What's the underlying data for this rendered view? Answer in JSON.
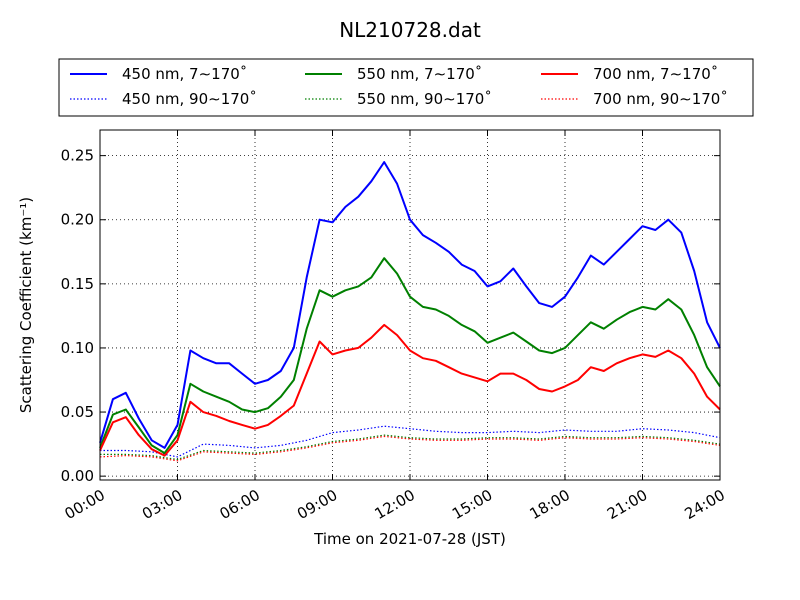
{
  "chart_data": {
    "type": "line",
    "title": "NL210728.dat",
    "xlabel": "Time on 2021-07-28 (JST)",
    "ylabel": "Scattering Coefficient (km⁻¹)",
    "xlim": [
      0,
      24
    ],
    "ylim": [
      -0.003,
      0.27
    ],
    "x_ticks": [
      "00:00",
      "03:00",
      "06:00",
      "09:00",
      "12:00",
      "15:00",
      "18:00",
      "21:00",
      "24:00"
    ],
    "y_ticks": [
      "0.00",
      "0.05",
      "0.10",
      "0.15",
      "0.20",
      "0.25"
    ],
    "grid": true,
    "legend_position": "top",
    "series": [
      {
        "name": "450 nm, 7∼170˚",
        "color": "#0000ff",
        "style": "solid",
        "x": [
          0,
          0.5,
          1,
          1.5,
          2,
          2.5,
          3,
          3.5,
          4,
          4.5,
          5,
          5.5,
          6,
          6.5,
          7,
          7.5,
          8,
          8.5,
          9,
          9.5,
          10,
          10.5,
          11,
          11.5,
          12,
          12.5,
          13,
          13.5,
          14,
          14.5,
          15,
          15.5,
          16,
          16.5,
          17,
          17.5,
          18,
          18.5,
          19,
          19.5,
          20,
          20.5,
          21,
          21.5,
          22,
          22.5,
          23,
          23.5,
          24
        ],
        "y": [
          0.026,
          0.06,
          0.065,
          0.045,
          0.028,
          0.022,
          0.04,
          0.098,
          0.092,
          0.088,
          0.088,
          0.08,
          0.072,
          0.075,
          0.082,
          0.1,
          0.155,
          0.2,
          0.198,
          0.21,
          0.218,
          0.23,
          0.245,
          0.228,
          0.2,
          0.188,
          0.182,
          0.175,
          0.165,
          0.16,
          0.148,
          0.152,
          0.162,
          0.148,
          0.135,
          0.132,
          0.14,
          0.155,
          0.172,
          0.165,
          0.175,
          0.185,
          0.195,
          0.192,
          0.2,
          0.19,
          0.16,
          0.12,
          0.1
        ]
      },
      {
        "name": "450 nm, 90∼170˚",
        "color": "#0000ff",
        "style": "dotted",
        "x": [
          0,
          1,
          2,
          3,
          4,
          5,
          6,
          7,
          8,
          9,
          10,
          11,
          12,
          13,
          14,
          15,
          16,
          17,
          18,
          19,
          20,
          21,
          22,
          23,
          24
        ],
        "y": [
          0.02,
          0.02,
          0.019,
          0.015,
          0.025,
          0.024,
          0.022,
          0.024,
          0.028,
          0.034,
          0.036,
          0.039,
          0.037,
          0.035,
          0.034,
          0.034,
          0.035,
          0.034,
          0.036,
          0.035,
          0.035,
          0.037,
          0.036,
          0.034,
          0.03
        ]
      },
      {
        "name": "550 nm, 7∼170˚",
        "color": "#008000",
        "style": "solid",
        "x": [
          0,
          0.5,
          1,
          1.5,
          2,
          2.5,
          3,
          3.5,
          4,
          4.5,
          5,
          5.5,
          6,
          6.5,
          7,
          7.5,
          8,
          8.5,
          9,
          9.5,
          10,
          10.5,
          11,
          11.5,
          12,
          12.5,
          13,
          13.5,
          14,
          14.5,
          15,
          15.5,
          16,
          16.5,
          17,
          17.5,
          18,
          18.5,
          19,
          19.5,
          20,
          20.5,
          21,
          21.5,
          22,
          22.5,
          23,
          23.5,
          24
        ],
        "y": [
          0.022,
          0.048,
          0.052,
          0.038,
          0.024,
          0.018,
          0.032,
          0.072,
          0.066,
          0.062,
          0.058,
          0.052,
          0.05,
          0.053,
          0.062,
          0.075,
          0.115,
          0.145,
          0.14,
          0.145,
          0.148,
          0.155,
          0.17,
          0.158,
          0.14,
          0.132,
          0.13,
          0.125,
          0.118,
          0.113,
          0.104,
          0.108,
          0.112,
          0.105,
          0.098,
          0.096,
          0.1,
          0.11,
          0.12,
          0.115,
          0.122,
          0.128,
          0.132,
          0.13,
          0.138,
          0.13,
          0.11,
          0.085,
          0.07
        ]
      },
      {
        "name": "550 nm, 90∼170˚",
        "color": "#008000",
        "style": "dotted",
        "x": [
          0,
          1,
          2,
          3,
          4,
          5,
          6,
          7,
          8,
          9,
          10,
          11,
          12,
          13,
          14,
          15,
          16,
          17,
          18,
          19,
          20,
          21,
          22,
          23,
          24
        ],
        "y": [
          0.017,
          0.017,
          0.016,
          0.013,
          0.02,
          0.019,
          0.018,
          0.02,
          0.023,
          0.027,
          0.029,
          0.032,
          0.03,
          0.029,
          0.029,
          0.03,
          0.03,
          0.029,
          0.031,
          0.03,
          0.03,
          0.031,
          0.03,
          0.028,
          0.025
        ]
      },
      {
        "name": "700 nm, 7∼170˚",
        "color": "#ff0000",
        "style": "solid",
        "x": [
          0,
          0.5,
          1,
          1.5,
          2,
          2.5,
          3,
          3.5,
          4,
          4.5,
          5,
          5.5,
          6,
          6.5,
          7,
          7.5,
          8,
          8.5,
          9,
          9.5,
          10,
          10.5,
          11,
          11.5,
          12,
          12.5,
          13,
          13.5,
          14,
          14.5,
          15,
          15.5,
          16,
          16.5,
          17,
          17.5,
          18,
          18.5,
          19,
          19.5,
          20,
          20.5,
          21,
          21.5,
          22,
          22.5,
          23,
          23.5,
          24
        ],
        "y": [
          0.02,
          0.042,
          0.046,
          0.032,
          0.021,
          0.016,
          0.028,
          0.058,
          0.05,
          0.047,
          0.043,
          0.04,
          0.037,
          0.04,
          0.047,
          0.055,
          0.08,
          0.105,
          0.095,
          0.098,
          0.1,
          0.108,
          0.118,
          0.11,
          0.098,
          0.092,
          0.09,
          0.085,
          0.08,
          0.077,
          0.074,
          0.08,
          0.08,
          0.075,
          0.068,
          0.066,
          0.07,
          0.075,
          0.085,
          0.082,
          0.088,
          0.092,
          0.095,
          0.093,
          0.098,
          0.092,
          0.08,
          0.062,
          0.052
        ]
      },
      {
        "name": "700 nm, 90∼170˚",
        "color": "#ff0000",
        "style": "dotted",
        "x": [
          0,
          1,
          2,
          3,
          4,
          5,
          6,
          7,
          8,
          9,
          10,
          11,
          12,
          13,
          14,
          15,
          16,
          17,
          18,
          19,
          20,
          21,
          22,
          23,
          24
        ],
        "y": [
          0.015,
          0.016,
          0.015,
          0.012,
          0.019,
          0.018,
          0.017,
          0.019,
          0.022,
          0.026,
          0.028,
          0.031,
          0.029,
          0.028,
          0.028,
          0.029,
          0.029,
          0.028,
          0.03,
          0.029,
          0.029,
          0.03,
          0.029,
          0.027,
          0.024
        ]
      }
    ]
  }
}
